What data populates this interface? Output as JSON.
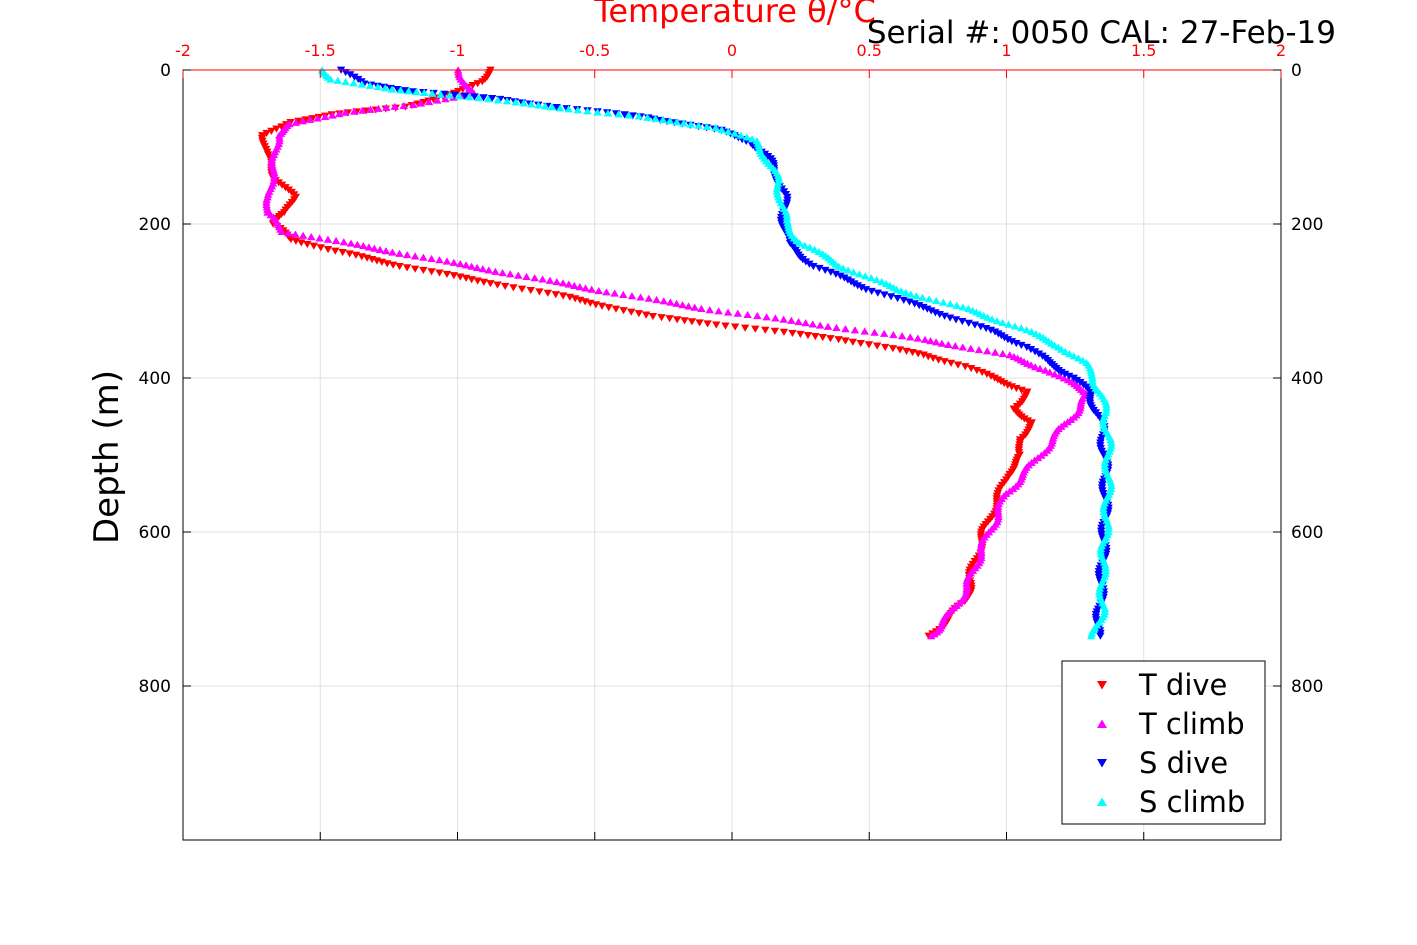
{
  "chart_data": {
    "type": "scatter",
    "title": "Temperature θ/°C",
    "annotation": "Serial #: 0050  CAL: 27-Feb-19",
    "xlabel": "Temperature θ/°C",
    "ylabel": "Depth (m)",
    "xlim": [
      -2,
      2
    ],
    "ylim": [
      0,
      1000
    ],
    "y_reversed": true,
    "x_axis_position": "top",
    "x_ticks": [
      -2,
      -1.5,
      -1,
      -0.5,
      0,
      0.5,
      1,
      1.5,
      2
    ],
    "x_tick_labels": [
      "-2",
      "-1.5",
      "-1",
      "-0.5",
      "0",
      "0.5",
      "1",
      "1.5",
      "2"
    ],
    "y_ticks": [
      0,
      200,
      400,
      600,
      800
    ],
    "y_tick_labels": [
      "0",
      "200",
      "400",
      "600",
      "800"
    ],
    "grid": true,
    "legend_position": "bottom-right",
    "colors": {
      "axis_top": "#ff0000",
      "axis_other": "#000000",
      "grid": "#e0e0e0"
    },
    "series": [
      {
        "name": "T dive",
        "color": "#ff0000",
        "marker": "triangle-down",
        "points": [
          [
            -0.88,
            0
          ],
          [
            -0.92,
            15
          ],
          [
            -1.0,
            30
          ],
          [
            -1.2,
            48
          ],
          [
            -1.45,
            58
          ],
          [
            -1.62,
            68
          ],
          [
            -1.7,
            85
          ],
          [
            -1.7,
            110
          ],
          [
            -1.66,
            140
          ],
          [
            -1.6,
            165
          ],
          [
            -1.62,
            185
          ],
          [
            -1.68,
            200
          ],
          [
            -1.6,
            220
          ],
          [
            -1.45,
            235
          ],
          [
            -1.2,
            255
          ],
          [
            -0.95,
            272
          ],
          [
            -0.6,
            295
          ],
          [
            -0.3,
            320
          ],
          [
            0.05,
            335
          ],
          [
            0.4,
            350
          ],
          [
            0.7,
            370
          ],
          [
            0.85,
            385
          ],
          [
            0.95,
            400
          ],
          [
            1.08,
            418
          ],
          [
            1.02,
            440
          ],
          [
            1.1,
            458
          ],
          [
            1.04,
            480
          ],
          [
            1.06,
            500
          ],
          [
            1.0,
            525
          ],
          [
            0.98,
            550
          ],
          [
            0.94,
            580
          ],
          [
            0.9,
            620
          ],
          [
            0.87,
            660
          ],
          [
            0.85,
            690
          ],
          [
            0.78,
            715
          ],
          [
            0.72,
            735
          ]
        ]
      },
      {
        "name": "T climb",
        "color": "#ff00ff",
        "marker": "triangle-up",
        "points": [
          [
            -1.0,
            0
          ],
          [
            -0.97,
            15
          ],
          [
            -0.95,
            30
          ],
          [
            -1.15,
            45
          ],
          [
            -1.42,
            55
          ],
          [
            -1.6,
            70
          ],
          [
            -1.66,
            85
          ],
          [
            -1.66,
            110
          ],
          [
            -1.68,
            140
          ],
          [
            -1.68,
            165
          ],
          [
            -1.7,
            185
          ],
          [
            -1.63,
            210
          ],
          [
            -1.4,
            225
          ],
          [
            -1.1,
            245
          ],
          [
            -0.8,
            265
          ],
          [
            -0.5,
            285
          ],
          [
            -0.1,
            310
          ],
          [
            0.3,
            330
          ],
          [
            0.7,
            350
          ],
          [
            1.0,
            370
          ],
          [
            1.15,
            390
          ],
          [
            1.25,
            410
          ],
          [
            1.3,
            420
          ],
          [
            1.25,
            445
          ],
          [
            1.18,
            475
          ],
          [
            1.1,
            510
          ],
          [
            1.0,
            550
          ],
          [
            0.95,
            590
          ],
          [
            0.9,
            630
          ],
          [
            0.86,
            670
          ],
          [
            0.8,
            705
          ],
          [
            0.75,
            725
          ],
          [
            0.72,
            735
          ]
        ]
      },
      {
        "name": "S dive",
        "color": "#0000ff",
        "marker": "triangle-down",
        "points": [
          [
            -1.42,
            0
          ],
          [
            -1.35,
            18
          ],
          [
            -1.15,
            28
          ],
          [
            -0.85,
            38
          ],
          [
            -0.6,
            50
          ],
          [
            -0.3,
            62
          ],
          [
            -0.05,
            78
          ],
          [
            0.08,
            95
          ],
          [
            0.13,
            115
          ],
          [
            0.17,
            140
          ],
          [
            0.19,
            165
          ],
          [
            0.19,
            195
          ],
          [
            0.2,
            225
          ],
          [
            0.3,
            255
          ],
          [
            0.5,
            285
          ],
          [
            0.75,
            315
          ],
          [
            0.95,
            340
          ],
          [
            1.08,
            360
          ],
          [
            1.15,
            380
          ],
          [
            1.25,
            400
          ],
          [
            1.3,
            420
          ],
          [
            1.33,
            445
          ],
          [
            1.35,
            470
          ],
          [
            1.36,
            520
          ],
          [
            1.36,
            580
          ],
          [
            1.35,
            640
          ],
          [
            1.34,
            700
          ],
          [
            1.33,
            735
          ]
        ]
      },
      {
        "name": "S climb",
        "color": "#00ffff",
        "marker": "triangle-up",
        "points": [
          [
            -1.5,
            0
          ],
          [
            -1.45,
            12
          ],
          [
            -1.25,
            25
          ],
          [
            -0.95,
            35
          ],
          [
            -0.65,
            48
          ],
          [
            -0.35,
            60
          ],
          [
            -0.05,
            75
          ],
          [
            0.08,
            92
          ],
          [
            0.13,
            115
          ],
          [
            0.16,
            140
          ],
          [
            0.18,
            165
          ],
          [
            0.19,
            195
          ],
          [
            0.25,
            225
          ],
          [
            0.4,
            255
          ],
          [
            0.6,
            285
          ],
          [
            0.85,
            310
          ],
          [
            1.05,
            335
          ],
          [
            1.2,
            360
          ],
          [
            1.28,
            380
          ],
          [
            1.32,
            400
          ],
          [
            1.34,
            420
          ],
          [
            1.36,
            445
          ],
          [
            1.37,
            480
          ],
          [
            1.37,
            540
          ],
          [
            1.36,
            600
          ],
          [
            1.35,
            650
          ],
          [
            1.35,
            700
          ],
          [
            1.32,
            735
          ]
        ]
      }
    ]
  }
}
